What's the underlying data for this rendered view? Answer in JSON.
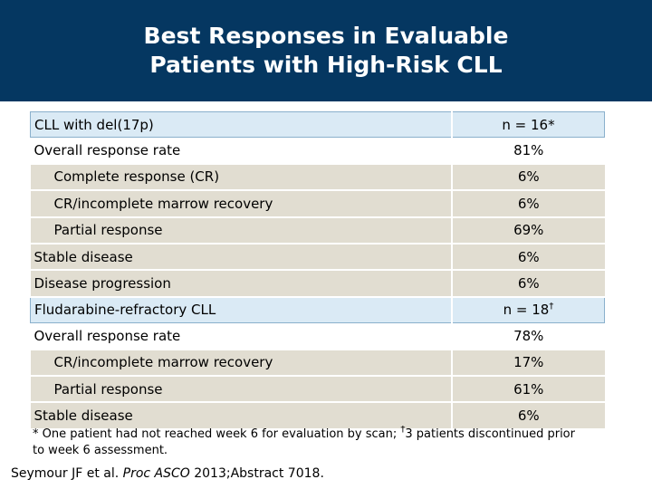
{
  "header": {
    "title_line1": "Best Responses in Evaluable",
    "title_line2": "Patients with High-Risk CLL",
    "bg_color": "#053761"
  },
  "table": {
    "rows": [
      {
        "label": "CLL with del(17p)",
        "value": "n = 16*"
      },
      {
        "label": "Overall response rate",
        "value": "81%"
      },
      {
        "label": "Complete response (CR)",
        "value": "6%"
      },
      {
        "label": "CR/incomplete marrow recovery",
        "value": "6%"
      },
      {
        "label": "Partial response",
        "value": "69%"
      },
      {
        "label": "Stable disease",
        "value": "6%"
      },
      {
        "label": "Disease progression",
        "value": "6%"
      },
      {
        "label": "Fludarabine-refractory CLL",
        "value": "n = 18",
        "value_sup": "†"
      },
      {
        "label": "Overall response rate",
        "value": "78%"
      },
      {
        "label": "CR/incomplete marrow recovery",
        "value": "17%"
      },
      {
        "label": "Partial response",
        "value": "61%"
      },
      {
        "label": "Stable disease",
        "value": "6%"
      }
    ]
  },
  "footnote": {
    "text1": "* One patient had not reached week 6 for evaluation by scan; ",
    "dagger": "†",
    "text2": "3 patients discontinued prior to week 6 assessment."
  },
  "citation": {
    "authors": "Seymour JF et al. ",
    "journal": "Proc ASCO",
    "rest": " 2013;Abstract 7018."
  }
}
